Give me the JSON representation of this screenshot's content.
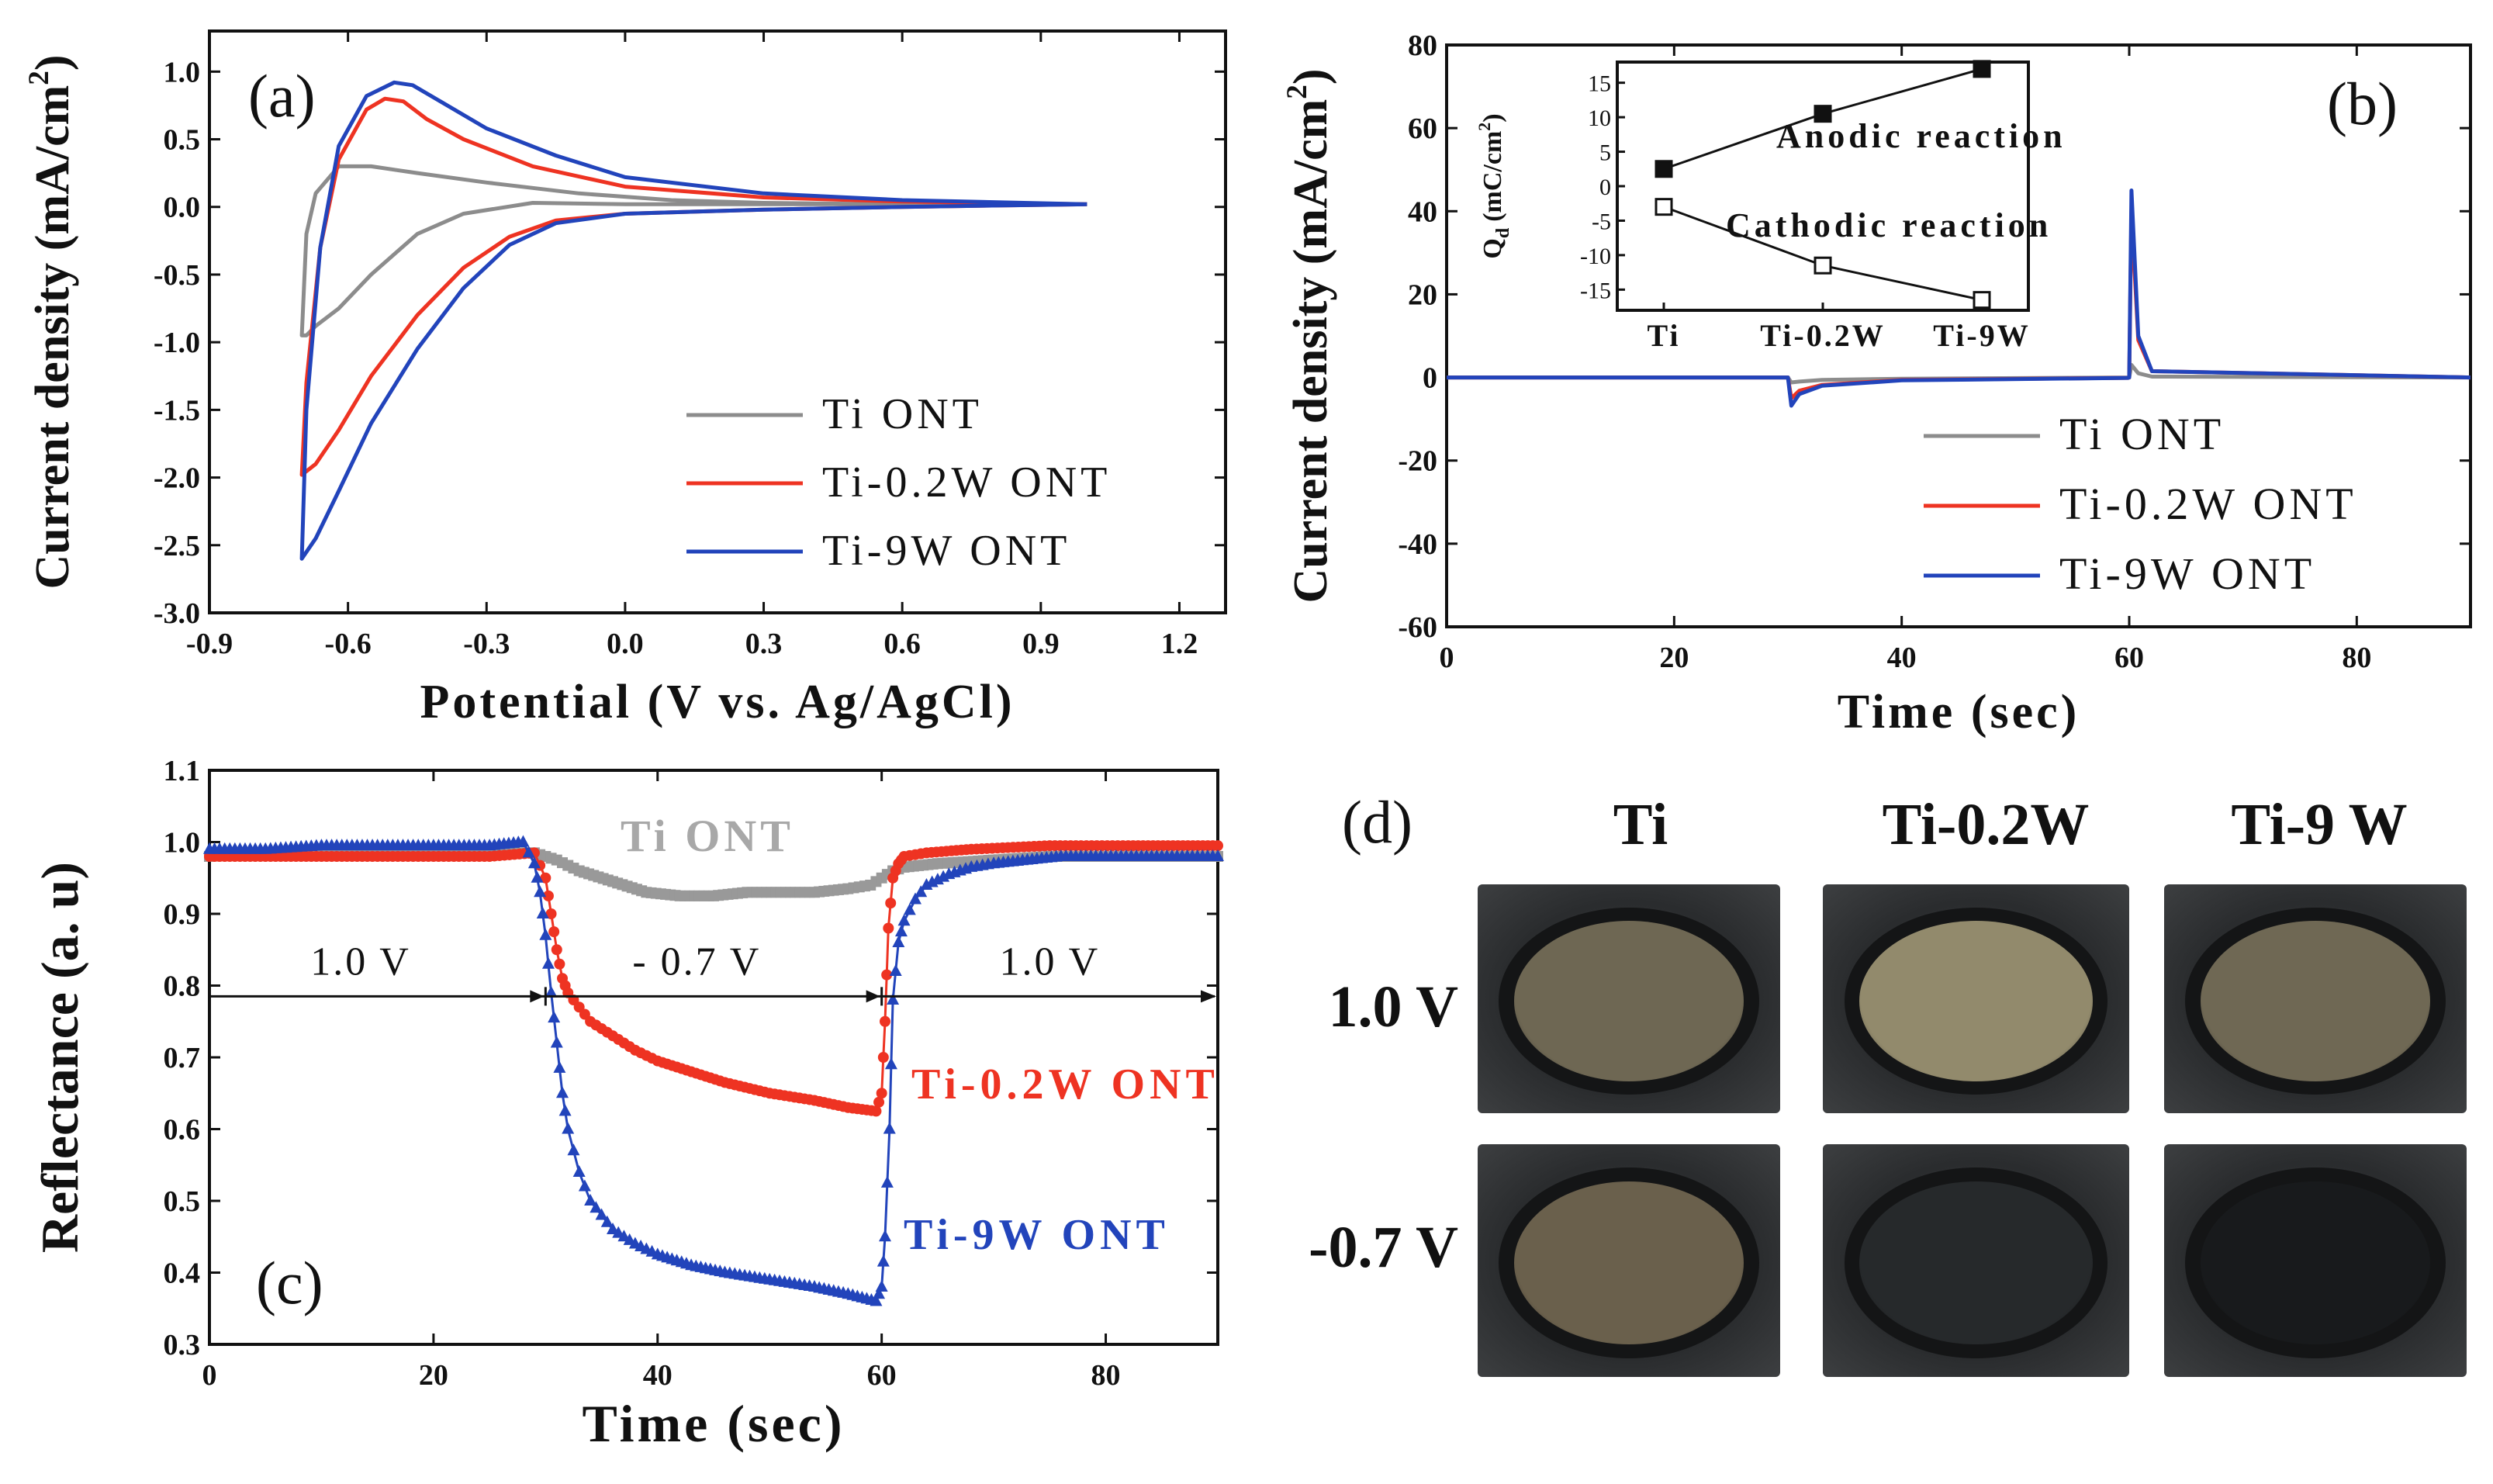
{
  "chart_data": [
    {
      "panel": "a",
      "type": "line",
      "xlabel": "Potential (V vs. Ag/AgCl)",
      "ylabel": "Current density (mA/cm",
      "ylabel_sup": "2",
      "ylabel_close": ")",
      "xlim": [
        -0.9,
        1.3
      ],
      "ylim": [
        -3.0,
        1.3
      ],
      "xticks": [
        "-0.9",
        "-0.6",
        "-0.3",
        "0.0",
        "0.3",
        "0.6",
        "0.9",
        "1.2"
      ],
      "xtick_values": [
        -0.9,
        -0.6,
        -0.3,
        0.0,
        0.3,
        0.6,
        0.9,
        1.2
      ],
      "yticks": [
        "-3.0",
        "-2.5",
        "-2.0",
        "-1.5",
        "-1.0",
        "-0.5",
        "0.0",
        "0.5",
        "1.0"
      ],
      "ytick_values": [
        -3.0,
        -2.5,
        -2.0,
        -1.5,
        -1.0,
        -0.5,
        0.0,
        0.5,
        1.0
      ],
      "legend": [
        "Ti ONT",
        "Ti-0.2W ONT",
        "Ti-9W ONT"
      ],
      "series": [
        {
          "name": "Ti ONT",
          "color": "#8c8c8c",
          "x": [
            1.0,
            0.6,
            0.3,
            0.0,
            -0.2,
            -0.35,
            -0.45,
            -0.55,
            -0.62,
            -0.67,
            -0.69,
            -0.7,
            -0.69,
            -0.67,
            -0.62,
            -0.55,
            -0.45,
            -0.3,
            -0.1,
            0.1,
            0.3,
            0.6,
            1.0
          ],
          "y": [
            0.02,
            0.02,
            0.02,
            0.02,
            0.03,
            -0.05,
            -0.2,
            -0.5,
            -0.75,
            -0.88,
            -0.95,
            -0.95,
            -0.2,
            0.1,
            0.3,
            0.3,
            0.25,
            0.18,
            0.1,
            0.05,
            0.03,
            0.02,
            0.02
          ]
        },
        {
          "name": "Ti-0.2W ONT",
          "color": "#ee3322",
          "x": [
            1.0,
            0.6,
            0.3,
            0.0,
            -0.15,
            -0.25,
            -0.35,
            -0.45,
            -0.55,
            -0.62,
            -0.67,
            -0.7,
            -0.69,
            -0.66,
            -0.62,
            -0.56,
            -0.52,
            -0.48,
            -0.43,
            -0.35,
            -0.2,
            0.0,
            0.3,
            0.6,
            1.0
          ],
          "y": [
            0.02,
            0.0,
            -0.02,
            -0.05,
            -0.1,
            -0.22,
            -0.45,
            -0.8,
            -1.25,
            -1.65,
            -1.9,
            -1.98,
            -1.3,
            -0.3,
            0.35,
            0.72,
            0.8,
            0.78,
            0.65,
            0.5,
            0.3,
            0.15,
            0.07,
            0.04,
            0.02
          ]
        },
        {
          "name": "Ti-9W ONT",
          "color": "#2244bb",
          "x": [
            1.0,
            0.6,
            0.3,
            0.0,
            -0.15,
            -0.25,
            -0.35,
            -0.45,
            -0.55,
            -0.62,
            -0.67,
            -0.7,
            -0.69,
            -0.66,
            -0.62,
            -0.56,
            -0.5,
            -0.46,
            -0.4,
            -0.3,
            -0.15,
            0.0,
            0.3,
            0.6,
            1.0
          ],
          "y": [
            0.02,
            0.0,
            -0.02,
            -0.05,
            -0.12,
            -0.28,
            -0.6,
            -1.05,
            -1.6,
            -2.1,
            -2.45,
            -2.6,
            -1.5,
            -0.3,
            0.45,
            0.82,
            0.92,
            0.9,
            0.78,
            0.58,
            0.38,
            0.22,
            0.1,
            0.05,
            0.02
          ]
        }
      ]
    },
    {
      "panel": "b",
      "type": "line",
      "xlabel": "Time (sec)",
      "ylabel": "Current density (mA/cm",
      "ylabel_sup": "2",
      "ylabel_close": ")",
      "xlim": [
        0,
        90
      ],
      "ylim": [
        -60,
        80
      ],
      "xticks": [
        "0",
        "20",
        "40",
        "60",
        "80"
      ],
      "xtick_values": [
        0,
        20,
        40,
        60,
        80
      ],
      "yticks": [
        "-60",
        "-40",
        "-20",
        "0",
        "20",
        "40",
        "60",
        "80"
      ],
      "ytick_values": [
        -60,
        -40,
        -20,
        0,
        20,
        40,
        60,
        80
      ],
      "legend": [
        "Ti ONT",
        "Ti-0.2W ONT",
        "Ti-9W ONT"
      ],
      "series": [
        {
          "name": "Ti ONT",
          "color": "#8c8c8c",
          "x": [
            0,
            29.9,
            30,
            30.3,
            31,
            33,
            40,
            59.9,
            60,
            60.2,
            60.8,
            62,
            90
          ],
          "y": [
            0,
            0,
            0,
            -1.2,
            -1,
            -0.6,
            -0.3,
            0,
            0,
            3,
            1,
            0.2,
            0
          ]
        },
        {
          "name": "Ti-0.2W ONT",
          "color": "#ee3322",
          "x": [
            0,
            29.9,
            30,
            30.3,
            31,
            33,
            40,
            59.9,
            60,
            60.2,
            60.8,
            62,
            90
          ],
          "y": [
            0,
            0,
            0,
            -5,
            -3.2,
            -1.8,
            -0.6,
            -0.1,
            0,
            40,
            9,
            1.5,
            0
          ]
        },
        {
          "name": "Ti-9W ONT",
          "color": "#2244bb",
          "x": [
            0,
            29.9,
            30,
            30.3,
            31,
            33,
            40,
            59.9,
            60,
            60.2,
            60.8,
            62,
            90
          ],
          "y": [
            0,
            0,
            0,
            -6.8,
            -4,
            -2,
            -0.7,
            -0.1,
            0,
            45,
            10,
            1.5,
            0
          ]
        }
      ],
      "inset": {
        "ylabel": "Q",
        "ylabel_sub": "d",
        "ylabel_unit": "(mC/cm",
        "ylabel_sup": "2",
        "ylabel_close": ")",
        "categories": [
          "Ti",
          "Ti-0.2W",
          "Ti-9W"
        ],
        "ylim": [
          -18,
          18
        ],
        "yticks": [
          "15",
          "10",
          "5",
          "0",
          "-5",
          "-10",
          "-15"
        ],
        "ytick_values": [
          15,
          10,
          5,
          0,
          -5,
          -10,
          -15
        ],
        "series": [
          {
            "name": "Anodic reaction",
            "marker": "filled-square",
            "values": [
              2.5,
              10.5,
              17
            ]
          },
          {
            "name": "Cathodic reaction",
            "marker": "open-square",
            "values": [
              -3,
              -11.5,
              -16.5
            ]
          }
        ],
        "annotations": [
          "Anodic reaction",
          "Cathodic reaction"
        ]
      }
    },
    {
      "panel": "c",
      "type": "scatter",
      "xlabel": "Time (sec)",
      "ylabel": "Reflectance (a. u)",
      "xlim": [
        0,
        90
      ],
      "ylim": [
        0.3,
        1.1
      ],
      "xticks": [
        "0",
        "20",
        "40",
        "60",
        "80"
      ],
      "xtick_values": [
        0,
        20,
        40,
        60,
        80
      ],
      "yticks": [
        "0.3",
        "0.4",
        "0.5",
        "0.6",
        "0.7",
        "0.8",
        "0.9",
        "1.0",
        "1.1"
      ],
      "ytick_values": [
        0.3,
        0.4,
        0.5,
        0.6,
        0.7,
        0.8,
        0.9,
        1.0,
        1.1
      ],
      "annotations": [
        "1.0 V",
        "- 0.7 V",
        "1.0 V"
      ],
      "arrow_y": 0.785,
      "series": [
        {
          "name": "Ti ONT",
          "color": "#999999",
          "marker": "square",
          "x": [
            0,
            5,
            10,
            15,
            20,
            25,
            29,
            31,
            33,
            36,
            39,
            42,
            45,
            48,
            51,
            54,
            57,
            59,
            60,
            61,
            62,
            65,
            70,
            75,
            80,
            85,
            90
          ],
          "y": [
            0.98,
            0.985,
            0.985,
            0.985,
            0.985,
            0.985,
            0.985,
            0.975,
            0.96,
            0.945,
            0.93,
            0.925,
            0.925,
            0.93,
            0.93,
            0.93,
            0.935,
            0.94,
            0.95,
            0.96,
            0.965,
            0.97,
            0.975,
            0.98,
            0.98,
            0.98,
            0.98
          ]
        },
        {
          "name": "Ti-0.2W ONT",
          "color": "#ee3322",
          "marker": "circle",
          "x": [
            0,
            5,
            10,
            15,
            20,
            25,
            29,
            30,
            30.5,
            31,
            31.5,
            32,
            33,
            34,
            36,
            38,
            40,
            43,
            46,
            50,
            54,
            57,
            59.5,
            60,
            60.3,
            60.6,
            61,
            61.5,
            62,
            64,
            68,
            75,
            82,
            90
          ],
          "y": [
            0.98,
            0.98,
            0.98,
            0.98,
            0.98,
            0.98,
            0.985,
            0.95,
            0.9,
            0.85,
            0.81,
            0.79,
            0.77,
            0.75,
            0.73,
            0.71,
            0.695,
            0.68,
            0.665,
            0.65,
            0.64,
            0.63,
            0.625,
            0.65,
            0.75,
            0.88,
            0.95,
            0.97,
            0.98,
            0.985,
            0.99,
            0.995,
            0.995,
            0.995
          ]
        },
        {
          "name": "Ti-9W ONT",
          "color": "#2244bb",
          "marker": "triangle",
          "x": [
            0,
            5,
            10,
            15,
            20,
            25,
            28,
            29,
            29.5,
            30,
            30.5,
            31,
            31.5,
            32,
            33,
            34,
            35,
            36,
            38,
            40,
            43,
            46,
            50,
            54,
            57,
            59.5,
            60,
            60.3,
            60.7,
            61,
            61.5,
            62,
            63,
            64,
            66,
            68,
            70,
            73,
            76,
            80,
            85,
            90
          ],
          "y": [
            0.99,
            0.99,
            0.995,
            0.995,
            0.995,
            0.995,
            1.0,
            0.97,
            0.93,
            0.87,
            0.79,
            0.72,
            0.65,
            0.6,
            0.54,
            0.5,
            0.48,
            0.46,
            0.44,
            0.425,
            0.41,
            0.4,
            0.39,
            0.38,
            0.37,
            0.36,
            0.38,
            0.45,
            0.6,
            0.78,
            0.86,
            0.89,
            0.92,
            0.94,
            0.955,
            0.965,
            0.97,
            0.975,
            0.98,
            0.98,
            0.98,
            0.98
          ]
        }
      ],
      "legend": [
        "Ti ONT",
        "Ti-0.2W ONT",
        "Ti-9W ONT"
      ]
    }
  ],
  "panel_labels": [
    "(a)",
    "(b)",
    "(c)",
    "(d)"
  ],
  "photos": {
    "columns": [
      "Ti",
      "Ti-0.2W",
      "Ti-9 W"
    ],
    "rows": [
      "1.0 V",
      "-0.7 V"
    ],
    "disc_colors": [
      [
        "#6e6753",
        "#928a6c",
        "#6f6854"
      ],
      [
        "#6a604c",
        "#26292b",
        "#181a1c"
      ]
    ]
  }
}
